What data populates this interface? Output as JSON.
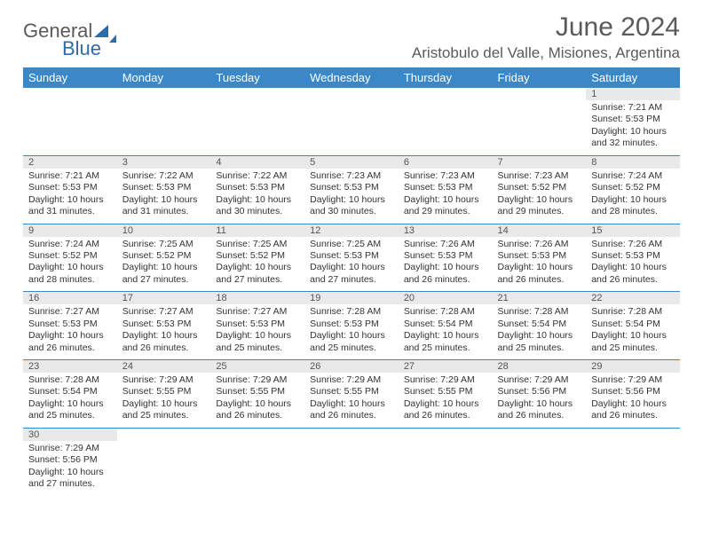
{
  "logo": {
    "word1": "General",
    "word2": "Blue"
  },
  "title": "June 2024",
  "location": "Aristobulo del Valle, Misiones, Argentina",
  "colors": {
    "header_bg": "#3b88c8",
    "daynum_bg": "#e9e9e9",
    "row_divider": "#3b88c8",
    "text": "#333333",
    "title_text": "#5a5a5a",
    "logo_blue": "#2e6ba8"
  },
  "weekdays": [
    "Sunday",
    "Monday",
    "Tuesday",
    "Wednesday",
    "Thursday",
    "Friday",
    "Saturday"
  ],
  "weeks": [
    {
      "nums": [
        "",
        "",
        "",
        "",
        "",
        "",
        "1"
      ],
      "cells": [
        null,
        null,
        null,
        null,
        null,
        null,
        {
          "sunrise": "7:21 AM",
          "sunset": "5:53 PM",
          "daylight": "10 hours and 32 minutes."
        }
      ]
    },
    {
      "nums": [
        "2",
        "3",
        "4",
        "5",
        "6",
        "7",
        "8"
      ],
      "cells": [
        {
          "sunrise": "7:21 AM",
          "sunset": "5:53 PM",
          "daylight": "10 hours and 31 minutes."
        },
        {
          "sunrise": "7:22 AM",
          "sunset": "5:53 PM",
          "daylight": "10 hours and 31 minutes."
        },
        {
          "sunrise": "7:22 AM",
          "sunset": "5:53 PM",
          "daylight": "10 hours and 30 minutes."
        },
        {
          "sunrise": "7:23 AM",
          "sunset": "5:53 PM",
          "daylight": "10 hours and 30 minutes."
        },
        {
          "sunrise": "7:23 AM",
          "sunset": "5:53 PM",
          "daylight": "10 hours and 29 minutes."
        },
        {
          "sunrise": "7:23 AM",
          "sunset": "5:52 PM",
          "daylight": "10 hours and 29 minutes."
        },
        {
          "sunrise": "7:24 AM",
          "sunset": "5:52 PM",
          "daylight": "10 hours and 28 minutes."
        }
      ]
    },
    {
      "nums": [
        "9",
        "10",
        "11",
        "12",
        "13",
        "14",
        "15"
      ],
      "cells": [
        {
          "sunrise": "7:24 AM",
          "sunset": "5:52 PM",
          "daylight": "10 hours and 28 minutes."
        },
        {
          "sunrise": "7:25 AM",
          "sunset": "5:52 PM",
          "daylight": "10 hours and 27 minutes."
        },
        {
          "sunrise": "7:25 AM",
          "sunset": "5:52 PM",
          "daylight": "10 hours and 27 minutes."
        },
        {
          "sunrise": "7:25 AM",
          "sunset": "5:53 PM",
          "daylight": "10 hours and 27 minutes."
        },
        {
          "sunrise": "7:26 AM",
          "sunset": "5:53 PM",
          "daylight": "10 hours and 26 minutes."
        },
        {
          "sunrise": "7:26 AM",
          "sunset": "5:53 PM",
          "daylight": "10 hours and 26 minutes."
        },
        {
          "sunrise": "7:26 AM",
          "sunset": "5:53 PM",
          "daylight": "10 hours and 26 minutes."
        }
      ]
    },
    {
      "nums": [
        "16",
        "17",
        "18",
        "19",
        "20",
        "21",
        "22"
      ],
      "cells": [
        {
          "sunrise": "7:27 AM",
          "sunset": "5:53 PM",
          "daylight": "10 hours and 26 minutes."
        },
        {
          "sunrise": "7:27 AM",
          "sunset": "5:53 PM",
          "daylight": "10 hours and 26 minutes."
        },
        {
          "sunrise": "7:27 AM",
          "sunset": "5:53 PM",
          "daylight": "10 hours and 25 minutes."
        },
        {
          "sunrise": "7:28 AM",
          "sunset": "5:53 PM",
          "daylight": "10 hours and 25 minutes."
        },
        {
          "sunrise": "7:28 AM",
          "sunset": "5:54 PM",
          "daylight": "10 hours and 25 minutes."
        },
        {
          "sunrise": "7:28 AM",
          "sunset": "5:54 PM",
          "daylight": "10 hours and 25 minutes."
        },
        {
          "sunrise": "7:28 AM",
          "sunset": "5:54 PM",
          "daylight": "10 hours and 25 minutes."
        }
      ]
    },
    {
      "nums": [
        "23",
        "24",
        "25",
        "26",
        "27",
        "28",
        "29"
      ],
      "cells": [
        {
          "sunrise": "7:28 AM",
          "sunset": "5:54 PM",
          "daylight": "10 hours and 25 minutes."
        },
        {
          "sunrise": "7:29 AM",
          "sunset": "5:55 PM",
          "daylight": "10 hours and 25 minutes."
        },
        {
          "sunrise": "7:29 AM",
          "sunset": "5:55 PM",
          "daylight": "10 hours and 26 minutes."
        },
        {
          "sunrise": "7:29 AM",
          "sunset": "5:55 PM",
          "daylight": "10 hours and 26 minutes."
        },
        {
          "sunrise": "7:29 AM",
          "sunset": "5:55 PM",
          "daylight": "10 hours and 26 minutes."
        },
        {
          "sunrise": "7:29 AM",
          "sunset": "5:56 PM",
          "daylight": "10 hours and 26 minutes."
        },
        {
          "sunrise": "7:29 AM",
          "sunset": "5:56 PM",
          "daylight": "10 hours and 26 minutes."
        }
      ]
    },
    {
      "nums": [
        "30",
        "",
        "",
        "",
        "",
        "",
        ""
      ],
      "cells": [
        {
          "sunrise": "7:29 AM",
          "sunset": "5:56 PM",
          "daylight": "10 hours and 27 minutes."
        },
        null,
        null,
        null,
        null,
        null,
        null
      ]
    }
  ],
  "labels": {
    "sunrise": "Sunrise: ",
    "sunset": "Sunset: ",
    "daylight": "Daylight: "
  }
}
